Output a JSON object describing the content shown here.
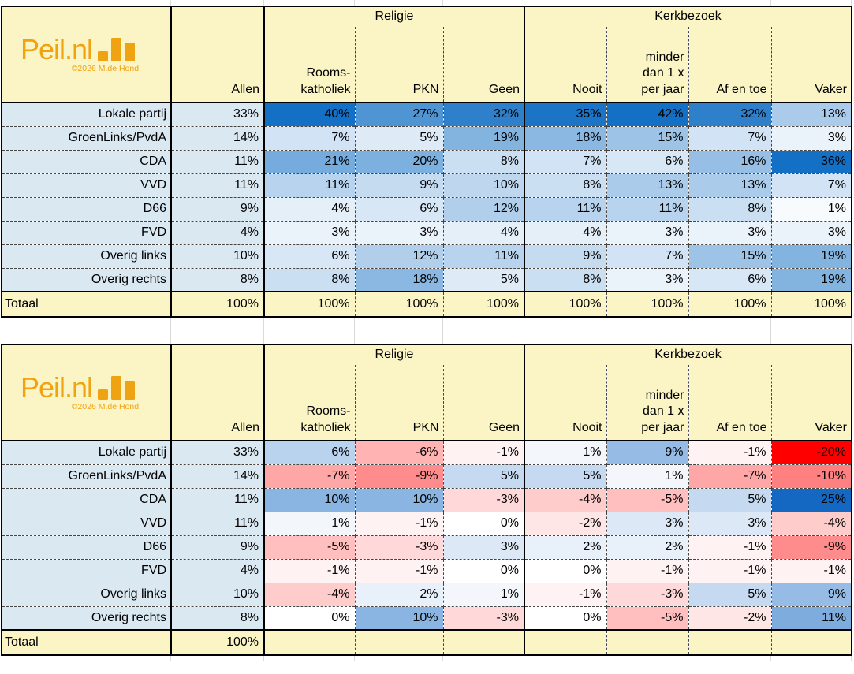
{
  "brand": {
    "logo_text": "Peil.nl",
    "copyright": "©2026 M.de Hond"
  },
  "colors": {
    "orange": "#F0A312",
    "header_bg": "#FBF5C6",
    "label_bg": "#DAE8F2",
    "scale1_min_color": "#FFFFFF",
    "scale1_max_color": "#1470C4",
    "scale2_min_color": "#FF0000",
    "scale2_mid_color": "#FFFFFF",
    "scale2_max_color": "#1568C2"
  },
  "header": {
    "allen": "Allen",
    "groups": [
      {
        "label": "Religie",
        "cols": [
          "Rooms-\nkatholiek",
          "PKN",
          "Geen"
        ]
      },
      {
        "label": "Kerkbezoek",
        "cols": [
          "Nooit",
          "minder\ndan 1 x\nper jaar",
          "Af en toe",
          "Vaker"
        ]
      }
    ]
  },
  "tables": [
    {
      "name": "percentages",
      "scale": {
        "min": 0,
        "max": 36
      }
    },
    {
      "name": "verschillen",
      "scale": {
        "min": -20,
        "mid": 0,
        "max": 20
      }
    }
  ],
  "chart_data": [
    {
      "type": "heatmap",
      "unit": "%",
      "columns": [
        "Allen",
        "Rooms-katholiek",
        "PKN",
        "Geen",
        "Nooit",
        "minder dan 1 x per jaar",
        "Af en toe",
        "Vaker"
      ],
      "column_groups": {
        "Religie": [
          "Rooms-katholiek",
          "PKN",
          "Geen"
        ],
        "Kerkbezoek": [
          "Nooit",
          "minder dan 1 x per jaar",
          "Af en toe",
          "Vaker"
        ]
      },
      "rows": [
        "Lokale partij",
        "GroenLinks/PvdA",
        "CDA",
        "VVD",
        "D66",
        "FVD",
        "Overig links",
        "Overig rechts",
        "Totaal"
      ],
      "values": [
        [
          33,
          40,
          27,
          32,
          35,
          42,
          32,
          13
        ],
        [
          14,
          7,
          5,
          19,
          18,
          15,
          7,
          3
        ],
        [
          11,
          21,
          20,
          8,
          7,
          6,
          16,
          36
        ],
        [
          11,
          11,
          9,
          10,
          8,
          13,
          13,
          7
        ],
        [
          9,
          4,
          6,
          12,
          11,
          11,
          8,
          1
        ],
        [
          4,
          3,
          3,
          4,
          4,
          3,
          3,
          3
        ],
        [
          10,
          6,
          12,
          11,
          9,
          7,
          15,
          19
        ],
        [
          8,
          8,
          18,
          5,
          8,
          3,
          6,
          19
        ],
        [
          100,
          100,
          100,
          100,
          100,
          100,
          100,
          100
        ]
      ],
      "colormap": "white-to-blue"
    },
    {
      "type": "heatmap",
      "unit": "%",
      "columns": [
        "Allen",
        "Rooms-katholiek",
        "PKN",
        "Geen",
        "Nooit",
        "minder dan 1 x per jaar",
        "Af en toe",
        "Vaker"
      ],
      "column_groups": {
        "Religie": [
          "Rooms-katholiek",
          "PKN",
          "Geen"
        ],
        "Kerkbezoek": [
          "Nooit",
          "minder dan 1 x per jaar",
          "Af en toe",
          "Vaker"
        ]
      },
      "rows": [
        "Lokale partij",
        "GroenLinks/PvdA",
        "CDA",
        "VVD",
        "D66",
        "FVD",
        "Overig links",
        "Overig rechts",
        "Totaal"
      ],
      "values": [
        [
          33,
          6,
          -6,
          -1,
          1,
          9,
          -1,
          -20
        ],
        [
          14,
          -7,
          -9,
          5,
          5,
          1,
          -7,
          -10
        ],
        [
          11,
          10,
          10,
          -3,
          -4,
          -5,
          5,
          25
        ],
        [
          11,
          1,
          -1,
          0,
          -2,
          3,
          3,
          -4
        ],
        [
          9,
          -5,
          -3,
          3,
          2,
          2,
          -1,
          -9
        ],
        [
          4,
          -1,
          -1,
          0,
          0,
          -1,
          -1,
          -1
        ],
        [
          10,
          -4,
          2,
          1,
          -1,
          -3,
          5,
          9
        ],
        [
          8,
          0,
          10,
          -3,
          0,
          -5,
          -2,
          11
        ],
        [
          100,
          null,
          null,
          null,
          null,
          null,
          null,
          null
        ]
      ],
      "colormap": "red-white-blue"
    }
  ]
}
